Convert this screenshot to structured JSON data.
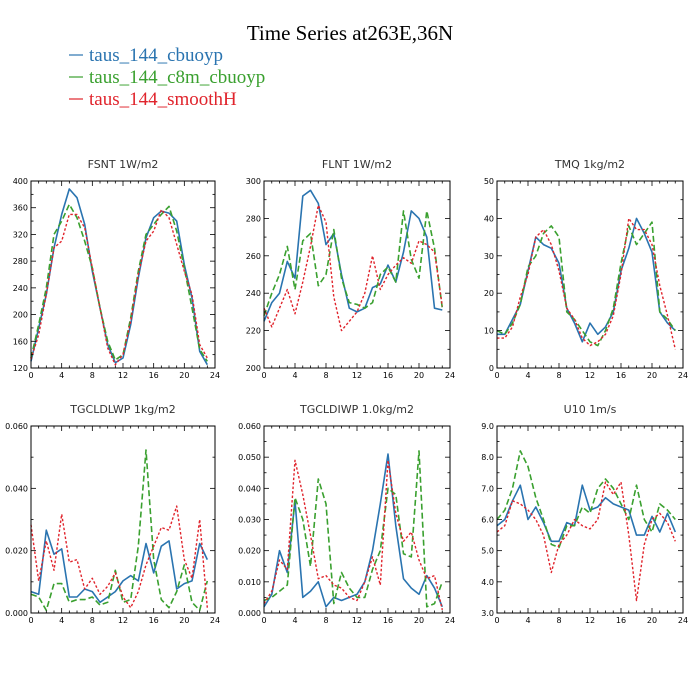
{
  "figure": {
    "title": "Time Series at263E,36N",
    "legend": [
      {
        "label": "taus_144_cbuoyp",
        "color": "#2a74b0",
        "dash": "solid"
      },
      {
        "label": "taus_144_c8m_cbuoyp",
        "color": "#3aa02f",
        "dash": "dashed"
      },
      {
        "label": "taus_144_smoothH",
        "color": "#e0242c",
        "dash": "dotted"
      }
    ]
  },
  "chart_data": [
    {
      "type": "line",
      "title": "FSNT   1W/m2",
      "xlim": [
        0,
        24
      ],
      "xticks": [
        "0",
        "4",
        "8",
        "12",
        "16",
        "20",
        "24"
      ],
      "ylim": [
        120,
        400
      ],
      "yticks": [
        "120",
        "160",
        "200",
        "240",
        "280",
        "320",
        "360",
        "400"
      ],
      "x": [
        0,
        1,
        2,
        3,
        4,
        5,
        6,
        7,
        8,
        9,
        10,
        11,
        12,
        13,
        14,
        15,
        16,
        17,
        18,
        19,
        20,
        21,
        22,
        23
      ],
      "series": [
        {
          "values": [
            130,
            180,
            230,
            300,
            350,
            388,
            375,
            335,
            265,
            210,
            155,
            128,
            135,
            185,
            255,
            315,
            345,
            355,
            352,
            340,
            275,
            225,
            145,
            125
          ]
        },
        {
          "values": [
            135,
            185,
            240,
            320,
            340,
            365,
            345,
            310,
            270,
            210,
            160,
            132,
            140,
            195,
            265,
            320,
            335,
            350,
            362,
            325,
            270,
            210,
            148,
            130
          ]
        },
        {
          "values": [
            133,
            170,
            230,
            300,
            310,
            350,
            350,
            330,
            270,
            210,
            150,
            125,
            140,
            190,
            260,
            310,
            325,
            357,
            345,
            305,
            265,
            230,
            155,
            135
          ]
        }
      ]
    },
    {
      "type": "line",
      "title": "FLNT   1W/m2",
      "xlim": [
        0,
        24
      ],
      "xticks": [
        "0",
        "4",
        "8",
        "12",
        "16",
        "20",
        "24"
      ],
      "ylim": [
        200,
        300
      ],
      "yticks": [
        "200",
        "220",
        "240",
        "260",
        "280",
        "300"
      ],
      "x": [
        0,
        1,
        2,
        3,
        4,
        5,
        6,
        7,
        8,
        9,
        10,
        11,
        12,
        13,
        14,
        15,
        16,
        17,
        18,
        19,
        20,
        21,
        22,
        23
      ],
      "series": [
        {
          "values": [
            225,
            235,
            240,
            257,
            248,
            292,
            295,
            288,
            266,
            272,
            250,
            232,
            230,
            232,
            243,
            245,
            255,
            246,
            262,
            284,
            280,
            270,
            232,
            231
          ]
        },
        {
          "values": [
            228,
            240,
            250,
            265,
            242,
            268,
            272,
            244,
            250,
            274,
            248,
            235,
            234,
            232,
            235,
            250,
            254,
            246,
            284,
            258,
            248,
            284,
            264,
            232
          ]
        },
        {
          "values": [
            232,
            222,
            232,
            242,
            229,
            246,
            265,
            287,
            278,
            238,
            220,
            225,
            230,
            240,
            260,
            242,
            250,
            255,
            259,
            256,
            268,
            266,
            262,
            233
          ]
        }
      ]
    },
    {
      "type": "line",
      "title": "TMQ   1kg/m2",
      "xlim": [
        0,
        24
      ],
      "xticks": [
        "0",
        "4",
        "8",
        "12",
        "16",
        "20",
        "24"
      ],
      "ylim": [
        0,
        50
      ],
      "yticks": [
        "0",
        "10",
        "20",
        "30",
        "40",
        "50"
      ],
      "x": [
        0,
        1,
        2,
        3,
        4,
        5,
        6,
        7,
        8,
        9,
        10,
        11,
        12,
        13,
        14,
        15,
        16,
        17,
        18,
        19,
        20,
        21,
        22,
        23
      ],
      "series": [
        {
          "values": [
            9,
            9,
            13,
            17,
            26,
            35,
            33,
            32,
            28,
            16,
            12,
            7,
            12,
            9,
            11,
            15,
            26,
            32,
            40,
            36,
            31,
            15,
            12,
            10
          ]
        },
        {
          "values": [
            10,
            9,
            12,
            17,
            27,
            30,
            36,
            38,
            35,
            15,
            13,
            10,
            7,
            6,
            10,
            16,
            28,
            38,
            33,
            36,
            39,
            15,
            13,
            10
          ]
        },
        {
          "values": [
            8,
            8,
            11,
            19,
            25,
            35,
            37,
            33,
            26,
            16,
            13,
            8,
            6,
            7,
            9,
            14,
            25,
            40,
            37,
            37,
            33,
            22,
            14,
            5
          ]
        }
      ]
    },
    {
      "type": "line",
      "title": "TGCLDLWP   1kg/m2",
      "xlim": [
        0,
        24
      ],
      "xticks": [
        "0",
        "4",
        "8",
        "12",
        "16",
        "20",
        "24"
      ],
      "ylim": [
        0,
        0.07
      ],
      "yticks": [
        "0.000",
        "0.020",
        "0.040",
        "0.060"
      ],
      "x": [
        0,
        1,
        2,
        3,
        4,
        5,
        6,
        7,
        8,
        9,
        10,
        11,
        12,
        13,
        14,
        15,
        16,
        17,
        18,
        19,
        20,
        21,
        22,
        23
      ],
      "series": [
        {
          "values": [
            0.008,
            0.007,
            0.031,
            0.022,
            0.024,
            0.006,
            0.006,
            0.009,
            0.008,
            0.004,
            0.006,
            0.008,
            0.012,
            0.014,
            0.012,
            0.026,
            0.015,
            0.025,
            0.027,
            0.009,
            0.011,
            0.012,
            0.026,
            0.02
          ]
        },
        {
          "values": [
            0.007,
            0.006,
            0.001,
            0.011,
            0.011,
            0.004,
            0.005,
            0.005,
            0.006,
            0.003,
            0.004,
            0.016,
            0.004,
            0.005,
            0.025,
            0.061,
            0.02,
            0.005,
            0.002,
            0.008,
            0.018,
            0.004,
            0.001,
            0.012
          ]
        },
        {
          "values": [
            0.033,
            0.012,
            0.027,
            0.016,
            0.037,
            0.019,
            0.02,
            0.009,
            0.013,
            0.007,
            0.01,
            0.015,
            0.006,
            0.002,
            0.008,
            0.018,
            0.025,
            0.032,
            0.031,
            0.04,
            0.02,
            0.013,
            0.035,
            0.002
          ]
        }
      ]
    },
    {
      "type": "line",
      "title": "TGCLDIWP   1.0kg/m2",
      "xlim": [
        0,
        24
      ],
      "xticks": [
        "0",
        "4",
        "8",
        "12",
        "16",
        "20",
        "24"
      ],
      "ylim": [
        0,
        0.06
      ],
      "yticks": [
        "0.000",
        "0.010",
        "0.020",
        "0.030",
        "0.040",
        "0.050",
        "0.060"
      ],
      "x": [
        0,
        1,
        2,
        3,
        4,
        5,
        6,
        7,
        8,
        9,
        10,
        11,
        12,
        13,
        14,
        15,
        16,
        17,
        18,
        19,
        20,
        21,
        22,
        23
      ],
      "series": [
        {
          "values": [
            0.002,
            0.006,
            0.02,
            0.013,
            0.036,
            0.005,
            0.007,
            0.01,
            0.002,
            0.005,
            0.004,
            0.005,
            0.006,
            0.01,
            0.02,
            0.035,
            0.051,
            0.028,
            0.011,
            0.008,
            0.006,
            0.012,
            0.008,
            0.002
          ]
        },
        {
          "values": [
            0.004,
            0.005,
            0.007,
            0.009,
            0.037,
            0.03,
            0.015,
            0.043,
            0.035,
            0.003,
            0.013,
            0.008,
            0.005,
            0.005,
            0.014,
            0.02,
            0.04,
            0.038,
            0.019,
            0.018,
            0.052,
            0.002,
            0.003,
            0.01
          ]
        },
        {
          "values": [
            0.003,
            0.007,
            0.017,
            0.014,
            0.049,
            0.038,
            0.025,
            0.011,
            0.012,
            0.009,
            0.008,
            0.005,
            0.004,
            0.01,
            0.018,
            0.009,
            0.049,
            0.032,
            0.023,
            0.026,
            0.017,
            0.011,
            0.012,
            0.001
          ]
        }
      ]
    },
    {
      "type": "line",
      "title": "U10   1m/s",
      "xlim": [
        0,
        24
      ],
      "xticks": [
        "0",
        "4",
        "8",
        "12",
        "16",
        "20",
        "24"
      ],
      "ylim": [
        3,
        9
      ],
      "yticks": [
        "3.0",
        "4.0",
        "5.0",
        "6.0",
        "7.0",
        "8.0",
        "9.0"
      ],
      "x": [
        0,
        1,
        2,
        3,
        4,
        5,
        6,
        7,
        8,
        9,
        10,
        11,
        12,
        13,
        14,
        15,
        16,
        17,
        18,
        19,
        20,
        21,
        22,
        23
      ],
      "series": [
        {
          "values": [
            5.8,
            6.0,
            6.6,
            7.1,
            6.0,
            6.4,
            5.9,
            5.3,
            5.3,
            5.9,
            5.8,
            7.1,
            6.3,
            6.4,
            6.7,
            6.5,
            6.4,
            6.3,
            5.5,
            5.5,
            6.1,
            5.6,
            6.2,
            5.6
          ]
        },
        {
          "values": [
            6.0,
            6.3,
            7.0,
            8.2,
            7.7,
            6.7,
            6.0,
            5.2,
            5.1,
            5.8,
            5.8,
            6.4,
            6.2,
            7.0,
            7.3,
            7.0,
            6.5,
            6.0,
            7.1,
            6.0,
            5.6,
            6.5,
            6.3,
            6.0
          ]
        },
        {
          "values": [
            5.6,
            5.8,
            6.6,
            6.5,
            6.3,
            6.0,
            5.5,
            4.3,
            5.2,
            5.5,
            6.0,
            5.8,
            5.7,
            6.0,
            7.2,
            6.8,
            7.2,
            5.5,
            3.4,
            5.2,
            6.0,
            6.2,
            5.9,
            5.3
          ]
        }
      ]
    }
  ]
}
